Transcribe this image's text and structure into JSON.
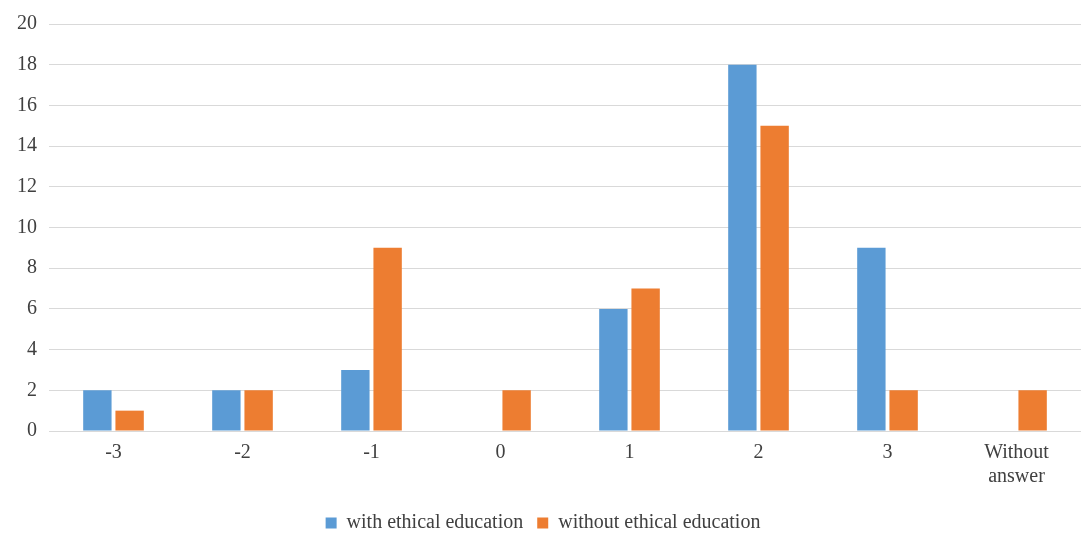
{
  "chart_data": {
    "type": "bar",
    "categories": [
      "-3",
      "-2",
      "-1",
      "0",
      "1",
      "2",
      "3",
      "Without answer"
    ],
    "series": [
      {
        "name": "with ethical education",
        "color": "#5b9bd5",
        "values": [
          2,
          2,
          3,
          0,
          6,
          18,
          9,
          0
        ]
      },
      {
        "name": "without ethical education",
        "color": "#ed7d31",
        "values": [
          1,
          2,
          9,
          2,
          7,
          15,
          2,
          2
        ]
      }
    ],
    "ylim": [
      0,
      20
    ],
    "yticks": [
      0,
      2,
      4,
      6,
      8,
      10,
      12,
      14,
      16,
      18,
      20
    ],
    "grid": "y",
    "legend": "bottom"
  }
}
